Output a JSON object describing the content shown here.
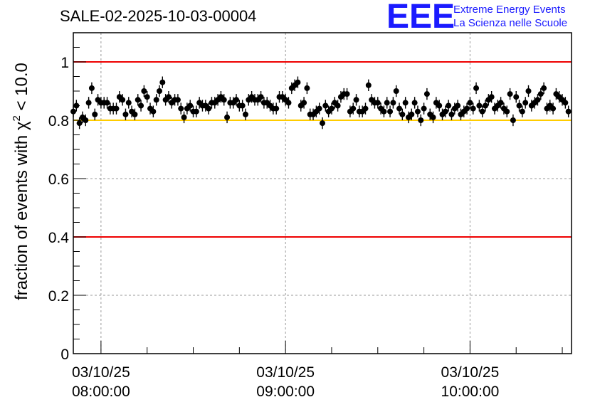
{
  "chart_data": {
    "type": "scatter",
    "title": "SALE-02-2025-10-03-00004",
    "ylabel": "fraction of events with χ² < 10.0",
    "ylabel_parts": {
      "prefix": "fraction of events with ",
      "chi": "χ",
      "sup": "2",
      "suffix": " < 10.0"
    },
    "xlabel": "",
    "ylim": [
      0,
      1.1
    ],
    "yticks": [
      0,
      0.2,
      0.4,
      0.6,
      0.8,
      1
    ],
    "ytick_labels": [
      "0",
      "0.2",
      "0.4",
      "0.6",
      "0.8",
      "1"
    ],
    "xlim_minutes": [
      -9,
      153
    ],
    "xticks_minutes": [
      0,
      60,
      120
    ],
    "xtick_labels": [
      {
        "date": "03/10/25",
        "time": "08:00:00"
      },
      {
        "date": "03/10/25",
        "time": "09:00:00"
      },
      {
        "date": "03/10/25",
        "time": "10:00:00"
      }
    ],
    "reference_lines": [
      {
        "y": 1.0,
        "color": "#ee0000"
      },
      {
        "y": 0.8,
        "color": "#ffcc00"
      },
      {
        "y": 0.4,
        "color": "#ee0000"
      }
    ],
    "series": [
      {
        "name": "fraction",
        "x_start_minutes": -9,
        "x_step_minutes": 1,
        "error": 0.02,
        "values": [
          0.83,
          0.85,
          0.79,
          0.81,
          0.8,
          0.86,
          0.91,
          0.82,
          0.87,
          0.86,
          0.86,
          0.86,
          0.84,
          0.84,
          0.84,
          0.88,
          0.87,
          0.82,
          0.86,
          0.83,
          0.82,
          0.87,
          0.85,
          0.9,
          0.88,
          0.84,
          0.83,
          0.87,
          0.9,
          0.93,
          0.87,
          0.88,
          0.86,
          0.87,
          0.87,
          0.84,
          0.81,
          0.84,
          0.85,
          0.83,
          0.83,
          0.86,
          0.85,
          0.85,
          0.84,
          0.86,
          0.86,
          0.87,
          0.88,
          0.87,
          0.81,
          0.86,
          0.86,
          0.87,
          0.85,
          0.85,
          0.82,
          0.87,
          0.88,
          0.87,
          0.87,
          0.88,
          0.86,
          0.86,
          0.85,
          0.84,
          0.84,
          0.88,
          0.88,
          0.87,
          0.86,
          0.91,
          0.92,
          0.93,
          0.85,
          0.86,
          0.91,
          0.82,
          0.82,
          0.83,
          0.84,
          0.79,
          0.85,
          0.83,
          0.84,
          0.86,
          0.85,
          0.88,
          0.89,
          0.89,
          0.83,
          0.84,
          0.87,
          0.83,
          0.83,
          0.84,
          0.92,
          0.87,
          0.86,
          0.86,
          0.84,
          0.83,
          0.86,
          0.83,
          0.86,
          0.9,
          0.84,
          0.82,
          0.86,
          0.81,
          0.82,
          0.86,
          0.83,
          0.8,
          0.84,
          0.89,
          0.82,
          0.81,
          0.86,
          0.85,
          0.82,
          0.83,
          0.85,
          0.82,
          0.84,
          0.85,
          0.82,
          0.83,
          0.84,
          0.86,
          0.84,
          0.91,
          0.85,
          0.83,
          0.85,
          0.87,
          0.88,
          0.84,
          0.85,
          0.86,
          0.84,
          0.83,
          0.89,
          0.8,
          0.88,
          0.85,
          0.83,
          0.86,
          0.9,
          0.85,
          0.86,
          0.87,
          0.89,
          0.91,
          0.84,
          0.85,
          0.84,
          0.89,
          0.88,
          0.87,
          0.86,
          0.83
        ]
      }
    ],
    "grid": true,
    "legend": "none"
  },
  "logo": {
    "mark": "EEE",
    "line1": "Extreme Energy Events",
    "line2": "La Scienza nelle Scuole",
    "color": "#1a1aff"
  }
}
